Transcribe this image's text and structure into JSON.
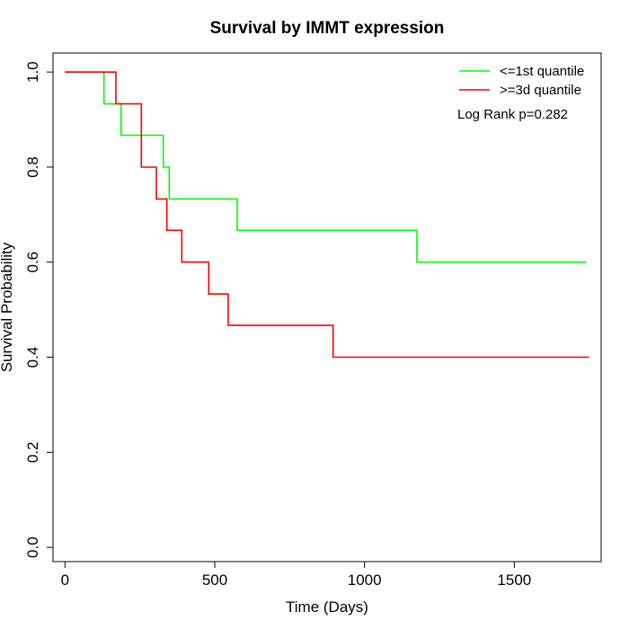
{
  "chart_data": {
    "type": "line",
    "step": true,
    "title": "Survival by IMMT expression",
    "xlabel": "Time (Days)",
    "ylabel": "Survival Probability",
    "xlim": [
      -40,
      1790
    ],
    "ylim": [
      -0.03,
      1.04
    ],
    "xticks": [
      0,
      500,
      1000,
      1500
    ],
    "yticks": [
      0.0,
      0.2,
      0.4,
      0.6,
      0.8,
      1.0
    ],
    "xtick_labels": [
      "0",
      "500",
      "1000",
      "1500"
    ],
    "ytick_labels": [
      "0.0",
      "0.2",
      "0.4",
      "0.6",
      "0.8",
      "1.0"
    ],
    "grid": false,
    "legend_position": "top-right",
    "annotation": "Log Rank p=0.282",
    "series": [
      {
        "name": "<=1st quantile",
        "color": "#00ff00",
        "x": [
          0,
          130,
          187,
          328,
          348,
          575,
          1175,
          1740
        ],
        "y": [
          1.0,
          0.933,
          0.867,
          0.8,
          0.733,
          0.667,
          0.6,
          0.6
        ]
      },
      {
        "name": ">=3d quantile",
        "color": "#ff0000",
        "x": [
          0,
          170,
          255,
          305,
          340,
          390,
          480,
          545,
          895,
          1750
        ],
        "y": [
          1.0,
          0.933,
          0.8,
          0.733,
          0.667,
          0.6,
          0.533,
          0.467,
          0.4,
          0.4
        ]
      }
    ]
  }
}
